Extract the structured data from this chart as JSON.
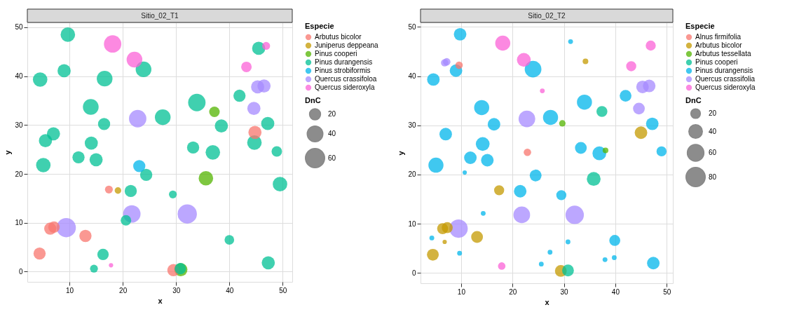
{
  "chart_data": [
    {
      "type": "bubble",
      "title": "Sitio_02_T1",
      "xlabel": "x",
      "ylabel": "y",
      "legend_title": "Especie",
      "annotations": [
        "DnC"
      ],
      "size_legend": [
        20,
        40,
        60
      ],
      "xlim": [
        2.1,
        51.8
      ],
      "ylim": [
        -2.1,
        51.0
      ],
      "xticks": [
        10,
        20,
        30,
        40,
        50
      ],
      "yticks": [
        0,
        10,
        20,
        30,
        40,
        50
      ],
      "grid": true,
      "legend": "right",
      "marker": "circle",
      "series": [
        {
          "name": "Arbutus bicolor",
          "color": "#F8766D",
          "x": [
            17.4,
            6.4,
            7.1,
            13.0,
            4.4,
            29.5,
            44.8
          ],
          "values": [
            16.8,
            8.8,
            9.1,
            7.3,
            3.7,
            0.3,
            28.5
          ],
          "sizes": [
            10,
            24,
            21,
            24,
            24,
            24,
            28
          ]
        },
        {
          "name": "Juniperus deppeana",
          "color": "#C49A00",
          "x": [
            19.1
          ],
          "values": [
            16.6
          ],
          "sizes": [
            7
          ]
        },
        {
          "name": "Pinus cooperi",
          "color": "#53B400",
          "x": [
            30.9,
            37.2,
            35.6
          ],
          "values": [
            0.4,
            32.7,
            19.1
          ],
          "sizes": [
            28,
            18,
            34
          ]
        },
        {
          "name": "Pinus durangensis",
          "color": "#00C094",
          "x": [
            9.7,
            23.9,
            9.0,
            4.5,
            16.6,
            14.0,
            27.5,
            16.5,
            7.0,
            5.5,
            14.1,
            11.7,
            15.0,
            5.1,
            24.4,
            21.5,
            29.4,
            20.6,
            16.3,
            14.6,
            30.8,
            45.5,
            41.9,
            33.9,
            38.5,
            47.2,
            44.7,
            33.2,
            36.9,
            48.9,
            49.5,
            40.0,
            47.3
          ],
          "values": [
            48.5,
            41.4,
            41.1,
            39.3,
            39.5,
            33.7,
            31.6,
            30.2,
            28.2,
            26.8,
            26.3,
            23.4,
            22.9,
            21.8,
            19.8,
            16.5,
            15.8,
            10.5,
            3.5,
            0.6,
            0.6,
            45.7,
            36.0,
            34.6,
            29.8,
            30.3,
            26.4,
            25.4,
            24.4,
            24.6,
            17.9,
            6.5,
            1.8
          ],
          "sizes": [
            34,
            40,
            28,
            34,
            40,
            40,
            40,
            24,
            28,
            28,
            28,
            24,
            28,
            34,
            24,
            24,
            10,
            18,
            21,
            10,
            21,
            28,
            24,
            49,
            28,
            28,
            34,
            24,
            34,
            18,
            34,
            15,
            28
          ]
        },
        {
          "name": "Pinus strobiformis",
          "color": "#00B6EB",
          "x": [
            23.1
          ],
          "values": [
            21.6
          ],
          "sizes": [
            24
          ]
        },
        {
          "name": "Quercus crassifoloa",
          "color": "#A58AFF",
          "x": [
            22.8,
            21.7,
            9.4,
            32.1,
            45.3,
            46.5,
            44.6
          ],
          "values": [
            31.3,
            11.8,
            9.0,
            11.8,
            37.8,
            38.0,
            33.4
          ],
          "sizes": [
            49,
            49,
            60,
            60,
            28,
            28,
            28
          ]
        },
        {
          "name": "Quercus sideroxyla",
          "color": "#FB61D7",
          "x": [
            18.1,
            22.2,
            17.8,
            46.9,
            43.2
          ],
          "values": [
            46.6,
            43.4,
            1.3,
            46.2,
            41.9
          ],
          "sizes": [
            49,
            40,
            3,
            10,
            18
          ]
        }
      ]
    },
    {
      "type": "bubble",
      "title": "Sitio_02_T2",
      "xlabel": "x",
      "ylabel": "y",
      "legend_title": "Especie",
      "annotations": [
        "DnC"
      ],
      "size_legend": [
        20,
        40,
        60,
        80
      ],
      "xlim": [
        2.1,
        51.2
      ],
      "ylim": [
        -2.1,
        50.9
      ],
      "xticks": [
        10,
        20,
        30,
        40,
        50
      ],
      "yticks": [
        0,
        10,
        20,
        30,
        40,
        50
      ],
      "grid": true,
      "legend": "right",
      "marker": "circle",
      "series": [
        {
          "name": "Alnus firmifolia",
          "color": "#F8766D",
          "x": [
            9.6,
            22.9
          ],
          "values": [
            42.2,
            24.5
          ],
          "sizes": [
            12,
            12
          ]
        },
        {
          "name": "Arbutus bicolor",
          "color": "#C49A00",
          "x": [
            17.4,
            6.4,
            7.3,
            6.8,
            13.1,
            4.5,
            29.4,
            34.2,
            45.0
          ],
          "values": [
            16.8,
            9.0,
            9.2,
            6.3,
            7.3,
            3.7,
            0.4,
            43.0,
            28.5
          ],
          "sizes": [
            22,
            26,
            26,
            4,
            30,
            30,
            30,
            7,
            34
          ]
        },
        {
          "name": "Arbutus tessellata",
          "color": "#53B400",
          "x": [
            29.7,
            38.1
          ],
          "values": [
            30.4,
            24.9
          ],
          "sizes": [
            9,
            7
          ]
        },
        {
          "name": "Pinus cooperi",
          "color": "#00C094",
          "x": [
            30.8,
            37.4,
            35.8
          ],
          "values": [
            0.5,
            32.8,
            19.1
          ],
          "sizes": [
            30,
            26,
            41
          ]
        },
        {
          "name": "Pinus durangensis",
          "color": "#00B6EB",
          "x": [
            9.8,
            9.0,
            24.0,
            4.6,
            14.0,
            27.4,
            16.4,
            7.0,
            14.2,
            11.8,
            15.1,
            5.1,
            10.7,
            24.5,
            21.5,
            29.5,
            14.3,
            4.3,
            9.7,
            27.3,
            25.6,
            30.8,
            31.3,
            42.0,
            34.0,
            47.2,
            33.3,
            36.9,
            49.0,
            39.9,
            38.0,
            39.8,
            47.4
          ],
          "values": [
            48.5,
            41.1,
            41.4,
            39.3,
            33.6,
            31.6,
            30.2,
            28.2,
            26.2,
            23.4,
            22.9,
            21.9,
            20.4,
            19.8,
            16.6,
            15.8,
            12.1,
            7.1,
            4.0,
            4.2,
            1.8,
            6.3,
            47.0,
            36.0,
            34.7,
            30.3,
            25.4,
            24.3,
            24.7,
            6.6,
            2.7,
            3.1,
            2.0
          ],
          "sizes": [
            34,
            34,
            60,
            34,
            49,
            49,
            34,
            34,
            41,
            34,
            34,
            49,
            4,
            30,
            34,
            22,
            5,
            5,
            5,
            5,
            5,
            5,
            5,
            30,
            49,
            34,
            30,
            41,
            22,
            26,
            5,
            5,
            34
          ]
        },
        {
          "name": "Quercus crassifolia",
          "color": "#A58AFF",
          "x": [
            6.8,
            7.2,
            22.8,
            21.8,
            9.5,
            32.1,
            45.3,
            46.6,
            44.6
          ],
          "values": [
            42.7,
            42.9,
            31.3,
            11.8,
            9.0,
            11.8,
            37.8,
            38.0,
            33.4
          ],
          "sizes": [
            12,
            12,
            60,
            60,
            73,
            73,
            34,
            34,
            30
          ]
        },
        {
          "name": "Quercus sideroxyla",
          "color": "#FB61D7",
          "x": [
            18.1,
            22.2,
            25.8,
            17.9,
            46.9,
            43.1
          ],
          "values": [
            46.7,
            43.3,
            37.0,
            1.4,
            46.2,
            42.0
          ],
          "sizes": [
            49,
            41,
            5,
            12,
            22,
            22
          ]
        }
      ]
    }
  ]
}
